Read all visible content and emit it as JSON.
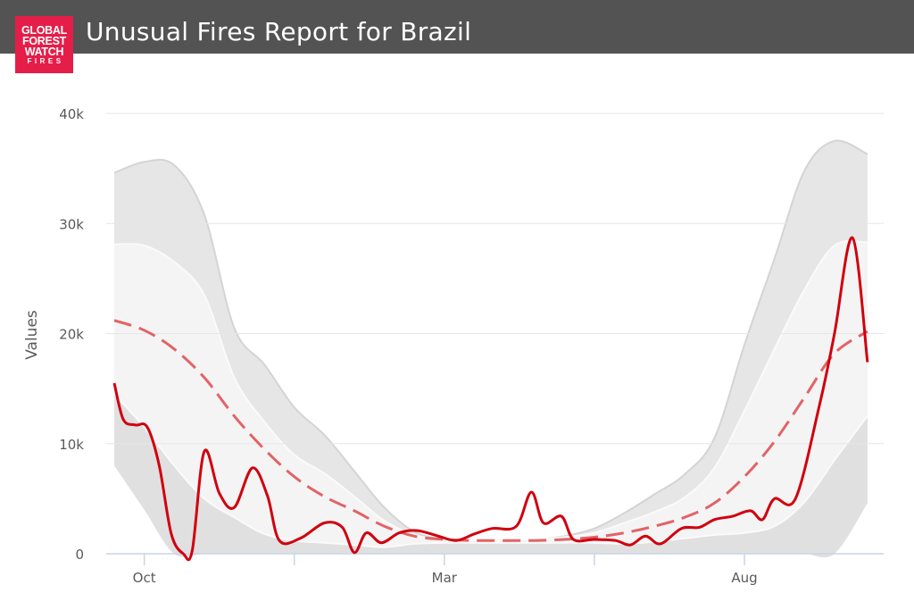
{
  "header": {
    "title": "Unusual Fires Report for Brazil",
    "logo_lines": [
      "GLOBAL",
      "FOREST",
      "WATCH",
      "FIRES"
    ]
  },
  "colors": {
    "header_bg": "#535353",
    "logo_bg": "#e41e48",
    "current_line": "#d0000e",
    "average_line": "#e26367",
    "outer_band": "#e6e6e6",
    "inner_band": "#f4f4f4",
    "lower_band": "#e0e0e0"
  },
  "chart_data": {
    "type": "line",
    "title": "Unusual Fires Report for Brazil",
    "xlabel": "",
    "ylabel": "Values",
    "x_range": [
      0,
      12.7
    ],
    "ylim": [
      0,
      40000
    ],
    "y_ticks": [
      0,
      10000,
      20000,
      30000,
      40000
    ],
    "y_tick_labels": [
      "0",
      "10k",
      "20k",
      "30k",
      "40k"
    ],
    "x_ticks": [
      {
        "x": 0.5,
        "label": "Oct"
      },
      {
        "x": 5.5,
        "label": "Mar"
      },
      {
        "x": 10.5,
        "label": "Aug"
      }
    ],
    "x_minor_ticks": [
      3.0,
      8.0
    ],
    "grid": true,
    "legend": "none",
    "series": [
      {
        "role": "current",
        "style": "solid",
        "points": [
          [
            0,
            15500
          ],
          [
            0.15,
            12200
          ],
          [
            0.35,
            11700
          ],
          [
            0.55,
            11500
          ],
          [
            0.75,
            8000
          ],
          [
            0.95,
            1800
          ],
          [
            1.15,
            0
          ],
          [
            1.3,
            300
          ],
          [
            1.5,
            9300
          ],
          [
            1.75,
            5500
          ],
          [
            2.0,
            4200
          ],
          [
            2.3,
            7800
          ],
          [
            2.55,
            5300
          ],
          [
            2.75,
            1200
          ],
          [
            3.1,
            1400
          ],
          [
            3.5,
            2800
          ],
          [
            3.8,
            2400
          ],
          [
            4.0,
            100
          ],
          [
            4.2,
            1900
          ],
          [
            4.45,
            1000
          ],
          [
            4.75,
            1900
          ],
          [
            5.05,
            2100
          ],
          [
            5.4,
            1600
          ],
          [
            5.7,
            1200
          ],
          [
            6.0,
            1800
          ],
          [
            6.3,
            2300
          ],
          [
            6.7,
            2500
          ],
          [
            6.95,
            5600
          ],
          [
            7.15,
            2800
          ],
          [
            7.45,
            3400
          ],
          [
            7.65,
            1300
          ],
          [
            8.0,
            1300
          ],
          [
            8.35,
            1200
          ],
          [
            8.6,
            800
          ],
          [
            8.85,
            1600
          ],
          [
            9.1,
            900
          ],
          [
            9.45,
            2300
          ],
          [
            9.75,
            2400
          ],
          [
            10.0,
            3100
          ],
          [
            10.3,
            3400
          ],
          [
            10.6,
            3900
          ],
          [
            10.8,
            3100
          ],
          [
            11.0,
            5000
          ],
          [
            11.35,
            5000
          ],
          [
            11.75,
            13500
          ],
          [
            12.0,
            20000
          ],
          [
            12.3,
            28700
          ],
          [
            12.55,
            17400
          ]
        ]
      },
      {
        "role": "average",
        "style": "dashed",
        "points": [
          [
            0,
            21200
          ],
          [
            0.5,
            20300
          ],
          [
            1.0,
            18600
          ],
          [
            1.5,
            16000
          ],
          [
            2.0,
            12500
          ],
          [
            2.5,
            9500
          ],
          [
            3.0,
            7000
          ],
          [
            3.5,
            5200
          ],
          [
            4.0,
            3900
          ],
          [
            4.5,
            2500
          ],
          [
            5.0,
            1600
          ],
          [
            5.5,
            1300
          ],
          [
            6.0,
            1200
          ],
          [
            6.5,
            1200
          ],
          [
            7.0,
            1200
          ],
          [
            7.5,
            1300
          ],
          [
            8.0,
            1500
          ],
          [
            8.5,
            1900
          ],
          [
            9.0,
            2500
          ],
          [
            9.5,
            3300
          ],
          [
            10.0,
            4600
          ],
          [
            10.5,
            7000
          ],
          [
            11.0,
            10200
          ],
          [
            11.5,
            14200
          ],
          [
            12.0,
            18200
          ],
          [
            12.55,
            20200
          ]
        ]
      },
      {
        "role": "outer_band_upper",
        "points": [
          [
            0,
            34600
          ],
          [
            0.5,
            35600
          ],
          [
            1.0,
            35300
          ],
          [
            1.5,
            30800
          ],
          [
            2.0,
            20500
          ],
          [
            2.5,
            17200
          ],
          [
            3.0,
            13300
          ],
          [
            3.5,
            10800
          ],
          [
            4.0,
            7500
          ],
          [
            4.5,
            4200
          ],
          [
            5.0,
            2000
          ],
          [
            5.5,
            1300
          ],
          [
            6.0,
            1200
          ],
          [
            6.5,
            1200
          ],
          [
            7.0,
            1300
          ],
          [
            7.5,
            1600
          ],
          [
            8.0,
            2300
          ],
          [
            8.5,
            3700
          ],
          [
            9.0,
            5400
          ],
          [
            9.5,
            7200
          ],
          [
            10.0,
            10500
          ],
          [
            10.5,
            19000
          ],
          [
            11.0,
            26800
          ],
          [
            11.5,
            34800
          ],
          [
            12.0,
            37500
          ],
          [
            12.55,
            36300
          ]
        ]
      },
      {
        "role": "inner_band_upper",
        "points": [
          [
            0,
            28100
          ],
          [
            0.5,
            28000
          ],
          [
            1.0,
            26500
          ],
          [
            1.5,
            23500
          ],
          [
            2.0,
            16000
          ],
          [
            2.5,
            12000
          ],
          [
            3.0,
            9000
          ],
          [
            3.5,
            7300
          ],
          [
            4.0,
            5200
          ],
          [
            4.5,
            3000
          ],
          [
            5.0,
            1700
          ],
          [
            5.5,
            1300
          ],
          [
            6.0,
            1200
          ],
          [
            6.5,
            1200
          ],
          [
            7.0,
            1300
          ],
          [
            7.5,
            1500
          ],
          [
            8.0,
            1900
          ],
          [
            8.5,
            2800
          ],
          [
            9.0,
            3800
          ],
          [
            9.5,
            5100
          ],
          [
            10.0,
            7800
          ],
          [
            10.5,
            13000
          ],
          [
            11.0,
            18600
          ],
          [
            11.5,
            24000
          ],
          [
            12.0,
            28000
          ],
          [
            12.55,
            28300
          ]
        ]
      },
      {
        "role": "inner_band_lower",
        "points": [
          [
            0,
            14500
          ],
          [
            0.5,
            11500
          ],
          [
            1.0,
            8000
          ],
          [
            1.5,
            5000
          ],
          [
            2.0,
            3300
          ],
          [
            2.5,
            1800
          ],
          [
            3.0,
            1200
          ],
          [
            3.5,
            1000
          ],
          [
            4.0,
            800
          ],
          [
            4.5,
            600
          ],
          [
            5.0,
            900
          ],
          [
            5.5,
            1000
          ],
          [
            6.0,
            1000
          ],
          [
            6.5,
            1000
          ],
          [
            7.0,
            1000
          ],
          [
            7.5,
            1000
          ],
          [
            8.0,
            1000
          ],
          [
            8.5,
            900
          ],
          [
            9.0,
            1100
          ],
          [
            9.5,
            1400
          ],
          [
            10.0,
            1700
          ],
          [
            10.5,
            1900
          ],
          [
            11.0,
            2500
          ],
          [
            11.5,
            4700
          ],
          [
            12.0,
            8500
          ],
          [
            12.55,
            12500
          ]
        ]
      },
      {
        "role": "outer_band_lower",
        "points": [
          [
            0,
            8000
          ],
          [
            0.5,
            4000
          ],
          [
            1.0,
            0
          ],
          [
            1.5,
            0
          ],
          [
            2.0,
            0
          ],
          [
            2.5,
            0
          ],
          [
            3.0,
            0
          ],
          [
            3.5,
            0
          ],
          [
            4.0,
            0
          ],
          [
            4.5,
            0
          ],
          [
            5.0,
            0
          ],
          [
            5.5,
            0
          ],
          [
            6.0,
            0
          ],
          [
            6.5,
            0
          ],
          [
            7.0,
            0
          ],
          [
            7.5,
            0
          ],
          [
            8.0,
            0
          ],
          [
            8.5,
            0
          ],
          [
            9.0,
            0
          ],
          [
            9.5,
            0
          ],
          [
            10.0,
            0
          ],
          [
            10.5,
            0
          ],
          [
            11.0,
            0
          ],
          [
            11.5,
            0
          ],
          [
            12.0,
            0
          ],
          [
            12.55,
            4600
          ]
        ]
      }
    ]
  }
}
